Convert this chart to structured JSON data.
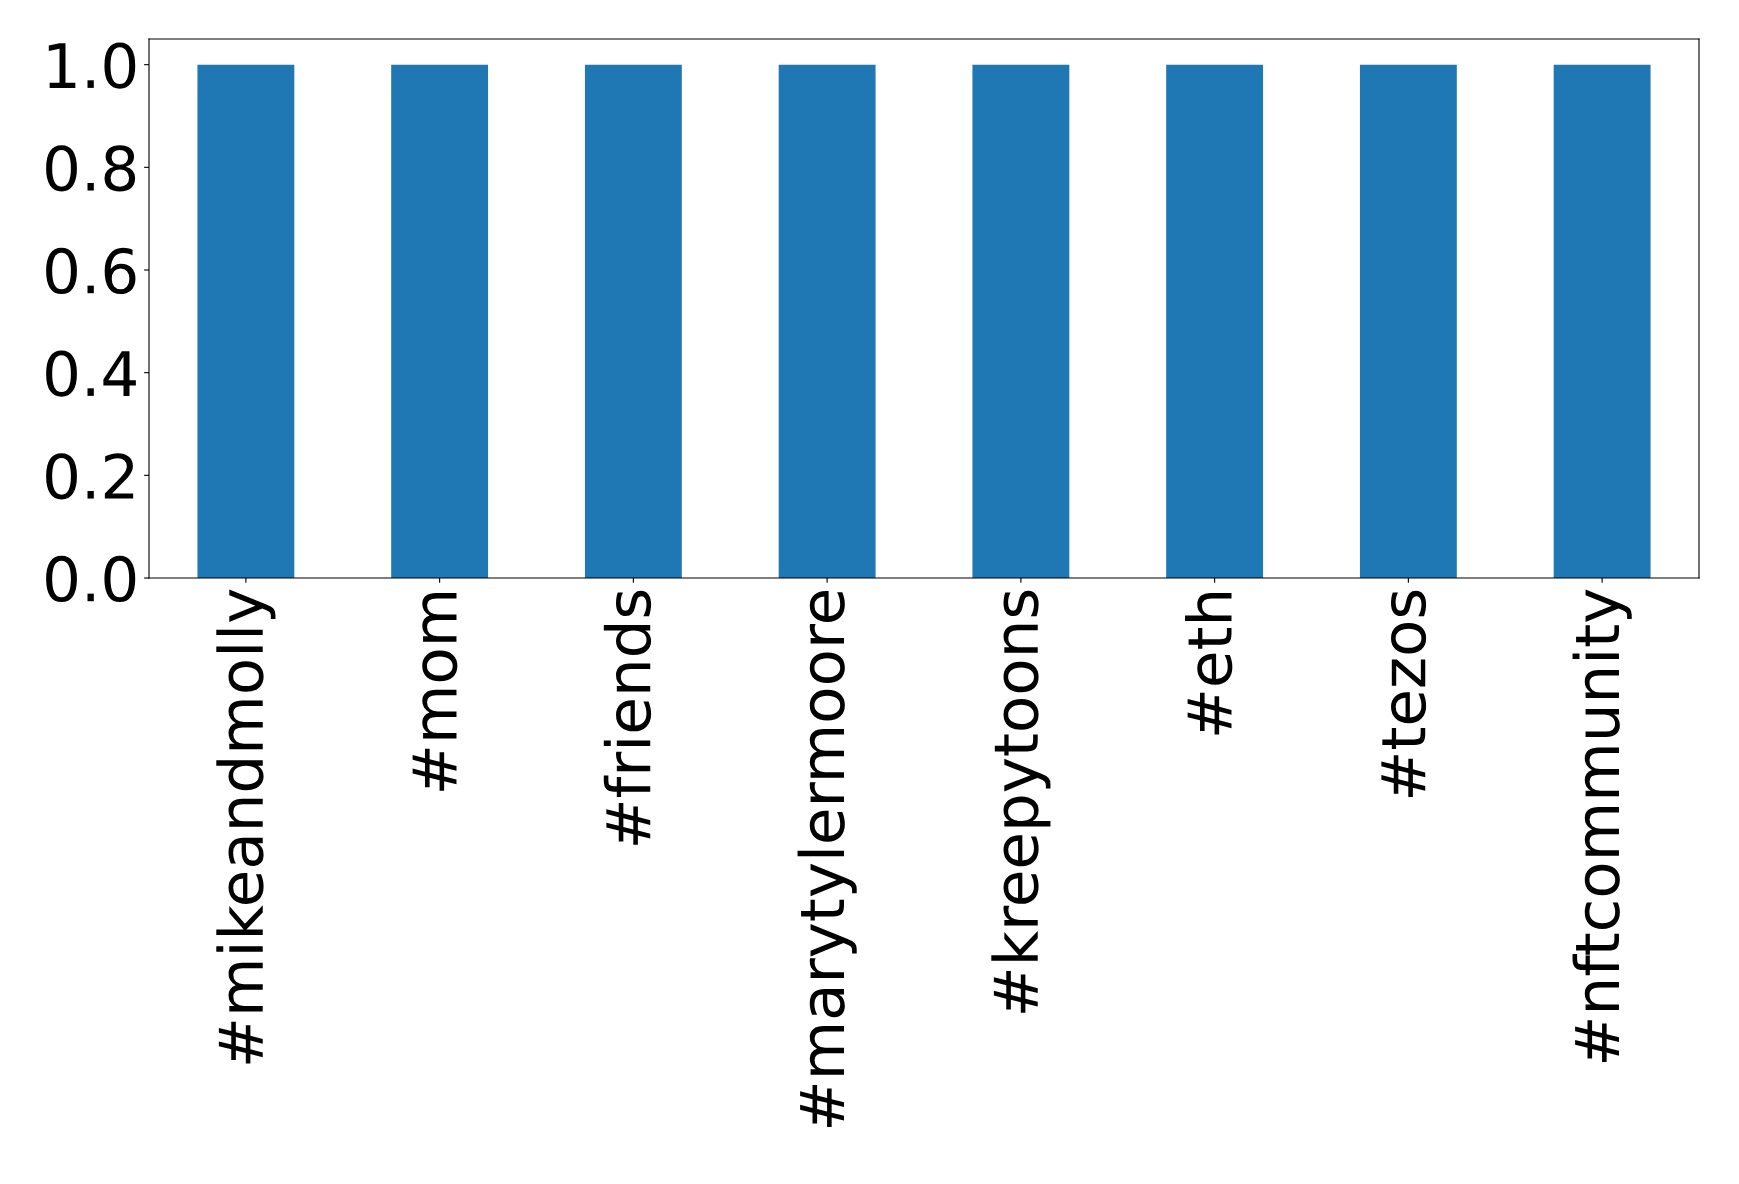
{
  "chart_data": {
    "type": "bar",
    "categories": [
      "#mikeandmolly",
      "#mom",
      "#friends",
      "#marytylermoore",
      "#kreepytoons",
      "#eth",
      "#tezos",
      "#nftcommunity"
    ],
    "values": [
      1,
      1,
      1,
      1,
      1,
      1,
      1,
      1
    ],
    "color": "#1f77b4",
    "ylim": [
      0,
      1.05
    ],
    "yticks": [
      {
        "value": 0,
        "label": "0.0"
      },
      {
        "value": 0.2,
        "label": "0.2"
      },
      {
        "value": 0.4,
        "label": "0.4"
      },
      {
        "value": 0.6,
        "label": "0.6"
      },
      {
        "value": 0.8,
        "label": "0.8"
      },
      {
        "value": 1.0,
        "label": "1.0"
      }
    ],
    "grid": false,
    "legend": false
  }
}
